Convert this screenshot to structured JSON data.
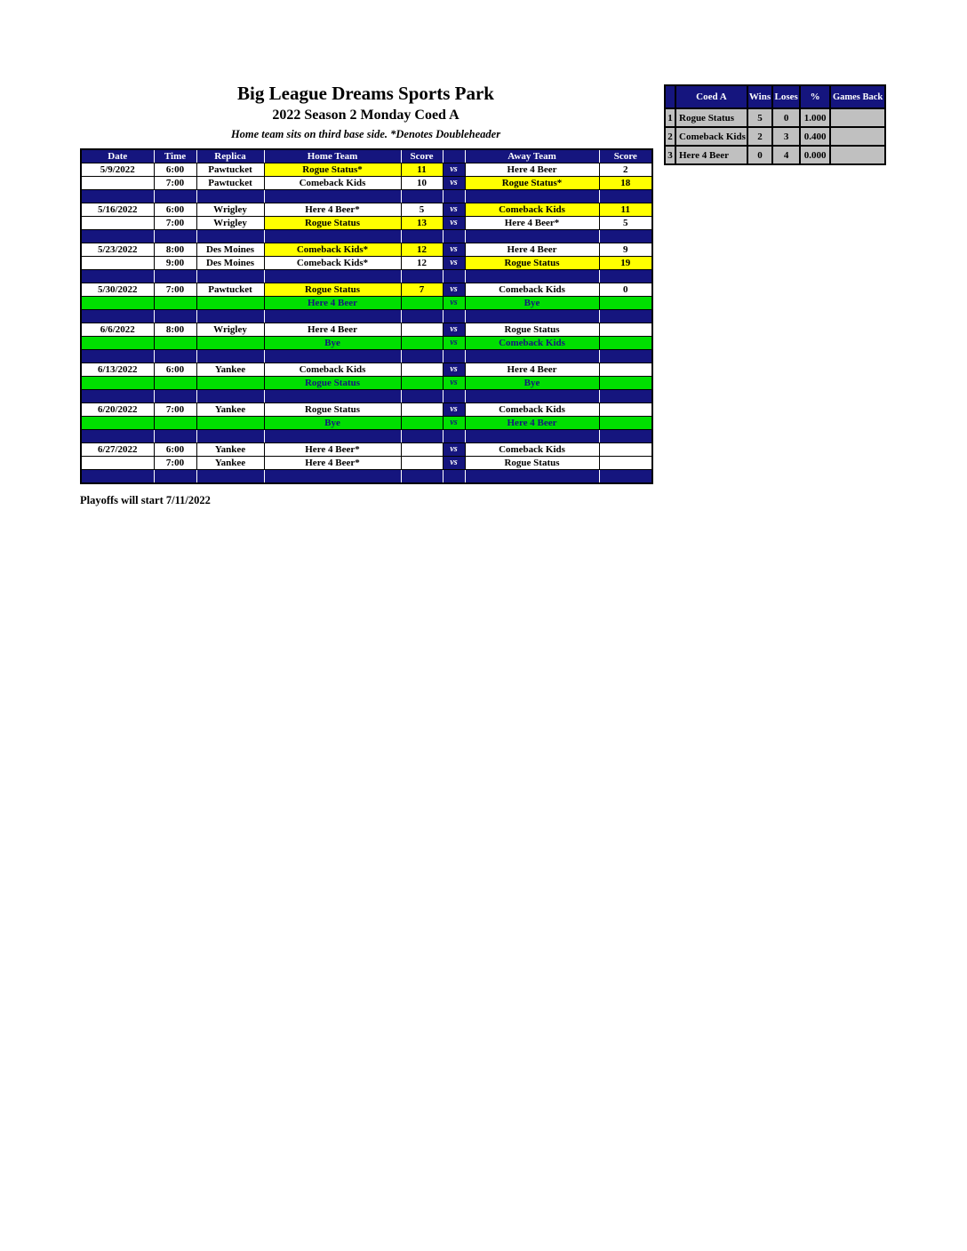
{
  "page": {
    "title": "Big League Dreams Sports Park",
    "subtitle": "2022 Season 2 Monday Coed A",
    "note": "Home team sits on third base side.  *Denotes Doubleheader",
    "footer": "Playoffs will start 7/11/2022"
  },
  "colors": {
    "navy": "#15157E",
    "highlight_yellow": "#FFFF00",
    "bye_green": "#00DF00",
    "standings_gray": "#C0C0C0",
    "header_text": "#FFFFFF",
    "body_text": "#000000"
  },
  "schedule": {
    "headers": {
      "date": "Date",
      "time": "Time",
      "replica": "Replica",
      "home": "Home Team",
      "home_score": "Score",
      "vs": "",
      "away": "Away Team",
      "away_score": "Score"
    },
    "vs_label": "vs",
    "rows": [
      {
        "type": "game",
        "date": "5/9/2022",
        "time": "6:00",
        "replica": "Pawtucket",
        "home": "Rogue Status*",
        "home_score": "11",
        "away": "Here 4 Beer",
        "away_score": "2",
        "highlight": "home"
      },
      {
        "type": "game",
        "date": "",
        "time": "7:00",
        "replica": "Pawtucket",
        "home": "Comeback Kids",
        "home_score": "10",
        "away": "Rogue Status*",
        "away_score": "18",
        "highlight": "away"
      },
      {
        "type": "spacer"
      },
      {
        "type": "game",
        "date": "5/16/2022",
        "time": "6:00",
        "replica": "Wrigley",
        "home": "Here 4 Beer*",
        "home_score": "5",
        "away": "Comeback Kids",
        "away_score": "11",
        "highlight": "away"
      },
      {
        "type": "game",
        "date": "",
        "time": "7:00",
        "replica": "Wrigley",
        "home": "Rogue Status",
        "home_score": "13",
        "away": "Here 4 Beer*",
        "away_score": "5",
        "highlight": "home"
      },
      {
        "type": "spacer"
      },
      {
        "type": "game",
        "date": "5/23/2022",
        "time": "8:00",
        "replica": "Des Moines",
        "home": "Comeback Kids*",
        "home_score": "12",
        "away": "Here 4 Beer",
        "away_score": "9",
        "highlight": "home"
      },
      {
        "type": "game",
        "date": "",
        "time": "9:00",
        "replica": "Des Moines",
        "home": "Comeback Kids*",
        "home_score": "12",
        "away": "Rogue Status",
        "away_score": "19",
        "highlight": "away"
      },
      {
        "type": "spacer"
      },
      {
        "type": "game",
        "date": "5/30/2022",
        "time": "7:00",
        "replica": "Pawtucket",
        "home": "Rogue Status",
        "home_score": "7",
        "away": "Comeback Kids",
        "away_score": "0",
        "highlight": "home"
      },
      {
        "type": "bye",
        "home": "Here 4 Beer",
        "away": "Bye"
      },
      {
        "type": "spacer"
      },
      {
        "type": "game",
        "date": "6/6/2022",
        "time": "8:00",
        "replica": "Wrigley",
        "home": "Here 4 Beer",
        "home_score": "",
        "away": "Rogue Status",
        "away_score": "",
        "highlight": "none"
      },
      {
        "type": "bye",
        "home": "Bye",
        "away": "Comeback Kids"
      },
      {
        "type": "spacer"
      },
      {
        "type": "game",
        "date": "6/13/2022",
        "time": "6:00",
        "replica": "Yankee",
        "home": "Comeback Kids",
        "home_score": "",
        "away": "Here 4 Beer",
        "away_score": "",
        "highlight": "none"
      },
      {
        "type": "bye",
        "home": "Rogue Status",
        "away": "Bye"
      },
      {
        "type": "spacer"
      },
      {
        "type": "game",
        "date": "6/20/2022",
        "time": "7:00",
        "replica": "Yankee",
        "home": "Rogue Status",
        "home_score": "",
        "away": "Comeback Kids",
        "away_score": "",
        "highlight": "none"
      },
      {
        "type": "bye",
        "home": "Bye",
        "away": "Here 4 Beer"
      },
      {
        "type": "spacer"
      },
      {
        "type": "game",
        "date": "6/27/2022",
        "time": "6:00",
        "replica": "Yankee",
        "home": "Here 4 Beer*",
        "home_score": "",
        "away": "Comeback Kids",
        "away_score": "",
        "highlight": "none"
      },
      {
        "type": "game",
        "date": "",
        "time": "7:00",
        "replica": "Yankee",
        "home": "Here 4 Beer*",
        "home_score": "",
        "away": "Rogue Status",
        "away_score": "",
        "highlight": "none"
      },
      {
        "type": "spacer"
      }
    ]
  },
  "standings": {
    "headers": {
      "rank": "",
      "team": "Coed A",
      "wins": "Wins",
      "loses": "Loses",
      "pct": "%",
      "games_back": "Games Back"
    },
    "rows": [
      {
        "rank": "1",
        "team": "Rogue Status",
        "wins": "5",
        "loses": "0",
        "pct": "1.000",
        "games_back": ""
      },
      {
        "rank": "2",
        "team": "Comeback Kids",
        "wins": "2",
        "loses": "3",
        "pct": "0.400",
        "games_back": ""
      },
      {
        "rank": "3",
        "team": "Here 4 Beer",
        "wins": "0",
        "loses": "4",
        "pct": "0.000",
        "games_back": ""
      }
    ]
  }
}
